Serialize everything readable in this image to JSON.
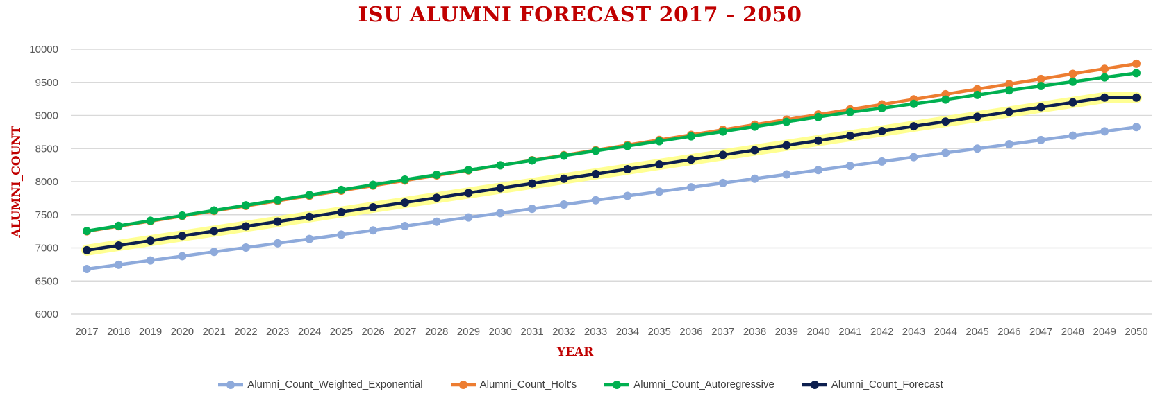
{
  "chart_data": {
    "type": "line",
    "title": "ISU ALUMNI FORECAST 2017 - 2050",
    "xlabel": "YEAR",
    "ylabel": "ALUMNI_COUNT",
    "ylim": [
      6000,
      10000
    ],
    "ytick_step": 500,
    "yticks": [
      "6000",
      "6500",
      "7000",
      "7500",
      "8000",
      "8500",
      "9000",
      "9500",
      "10000"
    ],
    "grid": true,
    "legend_position": "bottom",
    "x": [
      "2017",
      "2018",
      "2019",
      "2020",
      "2021",
      "2022",
      "2023",
      "2024",
      "2025",
      "2026",
      "2027",
      "2028",
      "2029",
      "2030",
      "2031",
      "2032",
      "2033",
      "2034",
      "2035",
      "2036",
      "2037",
      "2038",
      "2039",
      "2040",
      "2041",
      "2042",
      "2043",
      "2044",
      "2045",
      "2046",
      "2047",
      "2048",
      "2049",
      "2050"
    ],
    "series": [
      {
        "name": "Alumni_Count_Weighted_Exponential",
        "color": "#8eaadb",
        "values": [
          6680,
          6745,
          6810,
          6875,
          6940,
          7005,
          7070,
          7135,
          7200,
          7265,
          7330,
          7395,
          7460,
          7525,
          7590,
          7655,
          7720,
          7785,
          7850,
          7915,
          7980,
          8045,
          8110,
          8175,
          8240,
          8305,
          8370,
          8435,
          8500,
          8565,
          8630,
          8695,
          8760,
          8825
        ]
      },
      {
        "name": "Alumni_Count_Holt's",
        "color": "#ed7d31",
        "values": [
          7250,
          7327,
          7403,
          7480,
          7557,
          7633,
          7710,
          7787,
          7864,
          7940,
          8017,
          8094,
          8170,
          8247,
          8324,
          8400,
          8477,
          8554,
          8631,
          8707,
          8784,
          8861,
          8937,
          9014,
          9091,
          9167,
          9244,
          9321,
          9398,
          9474,
          9551,
          9628,
          9704,
          9781
        ]
      },
      {
        "name": "Alumni_Count_Autoregressive",
        "color": "#00b050",
        "values": [
          7255,
          7333,
          7410,
          7488,
          7566,
          7643,
          7721,
          7798,
          7876,
          7953,
          8031,
          8105,
          8175,
          8247,
          8320,
          8393,
          8466,
          8539,
          8612,
          8685,
          8758,
          8831,
          8904,
          8977,
          9050,
          9110,
          9175,
          9240,
          9310,
          9380,
          9445,
          9510,
          9575,
          9640
        ]
      },
      {
        "name": "Alumni_Count_Forecast",
        "color": "#0d1f4f",
        "highlight": "#ffff80",
        "values": [
          6965,
          7037,
          7109,
          7181,
          7253,
          7325,
          7397,
          7469,
          7541,
          7613,
          7685,
          7757,
          7829,
          7901,
          7973,
          8045,
          8117,
          8189,
          8261,
          8333,
          8405,
          8477,
          8549,
          8621,
          8693,
          8765,
          8837,
          8909,
          8981,
          9053,
          9125,
          9197,
          9269,
          9270
        ]
      }
    ]
  }
}
